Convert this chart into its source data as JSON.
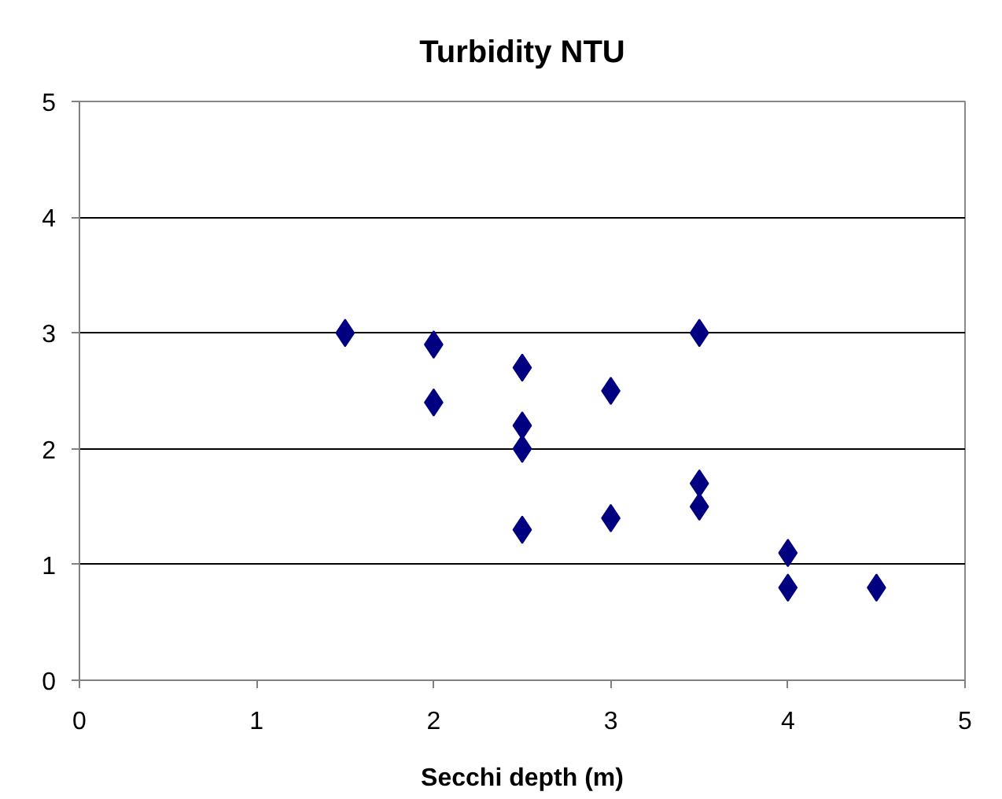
{
  "chart_data": {
    "type": "scatter",
    "title": "Turbidity NTU",
    "xlabel": "Secchi depth (m)",
    "x": [
      1.5,
      2,
      2,
      2.5,
      2.5,
      2.5,
      2.5,
      3,
      3,
      3.5,
      3.5,
      3.5,
      4,
      4,
      4.5
    ],
    "values": [
      3,
      2.9,
      2.4,
      2.7,
      2.2,
      2.0,
      1.3,
      2.5,
      1.4,
      3,
      1.7,
      1.5,
      1.1,
      0.8,
      0.8
    ],
    "color": "#000080",
    "marker": "diamond",
    "xlim": [
      0,
      5
    ],
    "ylim": [
      0,
      5
    ],
    "xticks": [
      0,
      1,
      2,
      3,
      4,
      5
    ],
    "yticks": [
      0,
      1,
      2,
      3,
      4,
      5
    ],
    "grid": "y"
  }
}
